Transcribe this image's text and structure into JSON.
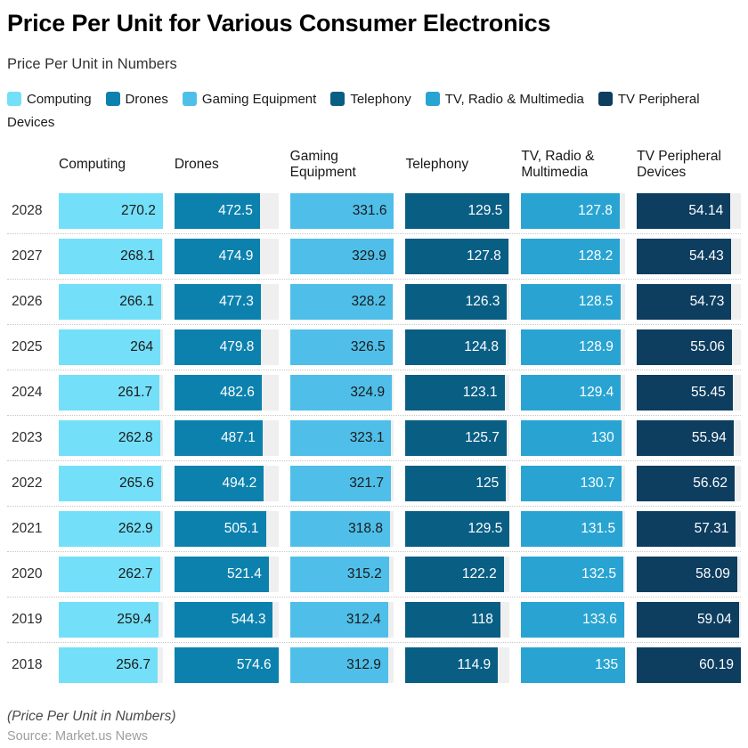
{
  "title": "Price Per Unit for Various Consumer Electronics",
  "subtitle": "Price Per Unit in Numbers",
  "footer": {
    "note": "(Price Per Unit in Numbers)",
    "source": "Source: Market.us News"
  },
  "colors": {
    "track": "#efefef",
    "separator": "#c8c8c8",
    "title_text": "#000000",
    "subtitle_text": "#333333"
  },
  "chart_data": {
    "type": "bar",
    "orientation": "horizontal",
    "layout": {
      "grid": "off",
      "legend_position": "top",
      "value_labels": "inside-end",
      "bar_scaling": "per-column-max",
      "row_separator": "dotted"
    },
    "categories": [
      "2028",
      "2027",
      "2026",
      "2025",
      "2024",
      "2023",
      "2022",
      "2021",
      "2020",
      "2019",
      "2018"
    ],
    "series": [
      {
        "name": "Computing",
        "color": "#74DFF8",
        "value_color": "#1a1a1a",
        "values": [
          270.2,
          268.1,
          266.1,
          264,
          261.7,
          262.8,
          265.6,
          262.9,
          262.7,
          259.4,
          256.7
        ]
      },
      {
        "name": "Drones",
        "color": "#0C81AE",
        "value_color": "#ffffff",
        "values": [
          472.5,
          474.9,
          477.3,
          479.8,
          482.6,
          487.1,
          494.2,
          505.1,
          521.4,
          544.3,
          574.6
        ]
      },
      {
        "name": "Gaming Equipment",
        "color": "#4FBFE9",
        "value_color": "#1a1a1a",
        "values": [
          331.6,
          329.9,
          328.2,
          326.5,
          324.9,
          323.1,
          321.7,
          318.8,
          315.2,
          312.4,
          312.9
        ]
      },
      {
        "name": "Telephony",
        "color": "#095E84",
        "value_color": "#ffffff",
        "values": [
          129.5,
          127.8,
          126.3,
          124.8,
          123.1,
          125.7,
          125,
          129.5,
          122.2,
          118,
          114.9
        ]
      },
      {
        "name": "TV, Radio & Multimedia",
        "color": "#29A4D2",
        "value_color": "#ffffff",
        "values": [
          127.8,
          128.2,
          128.5,
          128.9,
          129.4,
          130,
          130.7,
          131.5,
          132.5,
          133.6,
          135
        ]
      },
      {
        "name": "TV Peripheral Devices",
        "color": "#0D3D5F",
        "value_color": "#ffffff",
        "values": [
          54.14,
          54.43,
          54.73,
          55.06,
          55.45,
          55.94,
          56.62,
          57.31,
          58.09,
          59.04,
          60.19
        ]
      }
    ]
  }
}
